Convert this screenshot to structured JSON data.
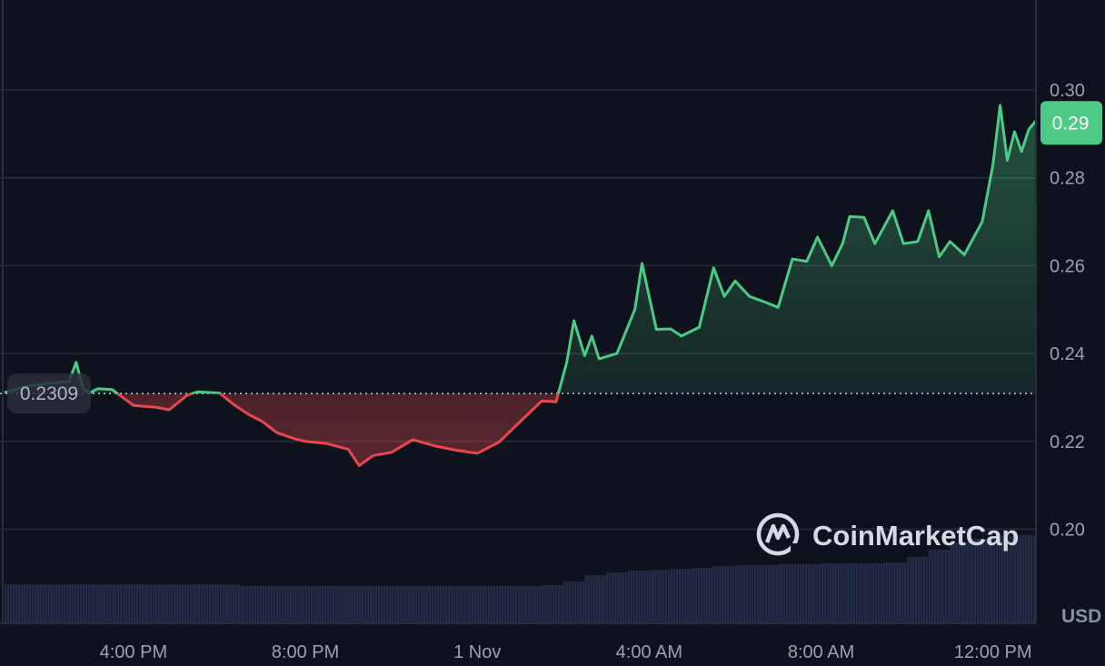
{
  "chart_data": {
    "type": "line",
    "currency_label": "USD",
    "baseline_label": "0.2309",
    "baseline": 0.2309,
    "current_price_label": "0.29",
    "watermark": "CoinMarketCap",
    "ylim": [
      0.185,
      0.318
    ],
    "yticks": [
      {
        "value": 0.3,
        "label": "0.30"
      },
      {
        "value": 0.28,
        "label": "0.28"
      },
      {
        "value": 0.26,
        "label": "0.26"
      },
      {
        "value": 0.24,
        "label": "0.24"
      },
      {
        "value": 0.22,
        "label": "0.22"
      },
      {
        "value": 0.2,
        "label": "0.20"
      }
    ],
    "xticks": [
      {
        "time": "31 Oct 16:00",
        "label": "4:00 PM"
      },
      {
        "time": "31 Oct 20:00",
        "label": "8:00 PM"
      },
      {
        "time": "1 Nov 00:00",
        "label": "1 Nov"
      },
      {
        "time": "1 Nov 04:00",
        "label": "4:00 AM"
      },
      {
        "time": "1 Nov 08:00",
        "label": "8:00 AM"
      },
      {
        "time": "1 Nov 12:00",
        "label": "12:00 PM"
      }
    ],
    "xlim": [
      "31 Oct 13:00",
      "1 Nov 13:00"
    ],
    "grid": true,
    "colors": {
      "up": "#4fc986",
      "down": "#e5484d",
      "volume": "#262d4a",
      "background": "#0e121c",
      "grid": "#2a2e3a"
    },
    "price": [
      [
        "31 Oct 13:00",
        0.2311
      ],
      [
        "31 Oct 13:30",
        0.2325
      ],
      [
        "31 Oct 14:00",
        0.2332
      ],
      [
        "31 Oct 14:30",
        0.2336
      ],
      [
        "31 Oct 14:40",
        0.238
      ],
      [
        "31 Oct 14:50",
        0.2318
      ],
      [
        "31 Oct 15:00",
        0.2311
      ],
      [
        "31 Oct 15:10",
        0.232
      ],
      [
        "31 Oct 15:30",
        0.2318
      ],
      [
        "31 Oct 16:00",
        0.2282
      ],
      [
        "31 Oct 16:30",
        0.2278
      ],
      [
        "31 Oct 16:50",
        0.2272
      ],
      [
        "31 Oct 17:15",
        0.2305
      ],
      [
        "31 Oct 17:30",
        0.2313
      ],
      [
        "31 Oct 18:00",
        0.231
      ],
      [
        "31 Oct 18:20",
        0.2284
      ],
      [
        "31 Oct 18:40",
        0.2262
      ],
      [
        "31 Oct 19:00",
        0.2245
      ],
      [
        "31 Oct 19:20",
        0.222
      ],
      [
        "31 Oct 19:45",
        0.2206
      ],
      [
        "31 Oct 20:00",
        0.22
      ],
      [
        "31 Oct 20:30",
        0.2195
      ],
      [
        "31 Oct 21:00",
        0.2182
      ],
      [
        "31 Oct 21:15",
        0.2145
      ],
      [
        "31 Oct 21:35",
        0.2168
      ],
      [
        "31 Oct 22:00",
        0.2175
      ],
      [
        "31 Oct 22:30",
        0.2204
      ],
      [
        "31 Oct 23:00",
        0.219
      ],
      [
        "31 Oct 23:30",
        0.218
      ],
      [
        "1 Nov 00:00",
        0.2173
      ],
      [
        "1 Nov 00:30",
        0.2198
      ],
      [
        "1 Nov 01:00",
        0.2245
      ],
      [
        "1 Nov 01:30",
        0.2292
      ],
      [
        "1 Nov 01:50",
        0.229
      ],
      [
        "1 Nov 02:05",
        0.238
      ],
      [
        "1 Nov 02:15",
        0.2475
      ],
      [
        "1 Nov 02:30",
        0.2395
      ],
      [
        "1 Nov 02:40",
        0.244
      ],
      [
        "1 Nov 02:50",
        0.2388
      ],
      [
        "1 Nov 03:15",
        0.24
      ],
      [
        "1 Nov 03:40",
        0.25
      ],
      [
        "1 Nov 03:50",
        0.2605
      ],
      [
        "1 Nov 04:00",
        0.253
      ],
      [
        "1 Nov 04:10",
        0.2455
      ],
      [
        "1 Nov 04:30",
        0.2456
      ],
      [
        "1 Nov 04:45",
        0.244
      ],
      [
        "1 Nov 05:10",
        0.246
      ],
      [
        "1 Nov 05:30",
        0.2595
      ],
      [
        "1 Nov 05:45",
        0.253
      ],
      [
        "1 Nov 06:00",
        0.2565
      ],
      [
        "1 Nov 06:20",
        0.253
      ],
      [
        "1 Nov 06:45",
        0.2515
      ],
      [
        "1 Nov 07:00",
        0.2505
      ],
      [
        "1 Nov 07:20",
        0.2615
      ],
      [
        "1 Nov 07:40",
        0.261
      ],
      [
        "1 Nov 07:55",
        0.2665
      ],
      [
        "1 Nov 08:15",
        0.26
      ],
      [
        "1 Nov 08:30",
        0.265
      ],
      [
        "1 Nov 08:40",
        0.2712
      ],
      [
        "1 Nov 09:00",
        0.271
      ],
      [
        "1 Nov 09:15",
        0.265
      ],
      [
        "1 Nov 09:40",
        0.2725
      ],
      [
        "1 Nov 09:55",
        0.265
      ],
      [
        "1 Nov 10:15",
        0.2655
      ],
      [
        "1 Nov 10:30",
        0.2725
      ],
      [
        "1 Nov 10:45",
        0.262
      ],
      [
        "1 Nov 11:00",
        0.2655
      ],
      [
        "1 Nov 11:20",
        0.2625
      ],
      [
        "1 Nov 11:45",
        0.27
      ],
      [
        "1 Nov 12:00",
        0.283
      ],
      [
        "1 Nov 12:10",
        0.2965
      ],
      [
        "1 Nov 12:20",
        0.284
      ],
      [
        "1 Nov 12:30",
        0.2905
      ],
      [
        "1 Nov 12:40",
        0.286
      ],
      [
        "1 Nov 12:50",
        0.291
      ],
      [
        "1 Nov 13:00",
        0.293
      ]
    ],
    "volume": [
      42,
      42,
      42,
      42,
      42,
      42,
      42,
      42,
      42,
      42,
      42,
      40,
      40,
      40,
      40,
      40,
      40,
      40,
      40,
      40,
      40,
      40,
      40,
      40,
      40,
      41,
      45,
      52,
      55,
      57,
      58,
      59,
      60,
      62,
      63,
      63,
      64,
      64,
      65,
      65,
      65,
      66,
      72,
      80,
      88,
      92,
      95,
      96
    ]
  }
}
